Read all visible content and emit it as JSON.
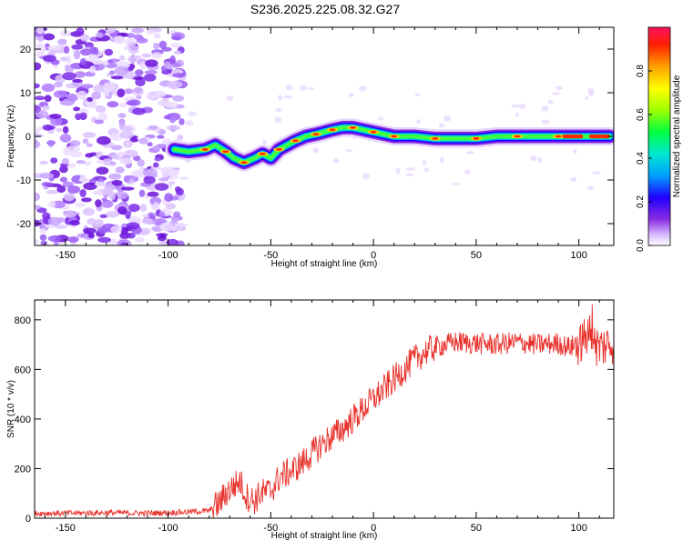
{
  "chart_data": [
    {
      "type": "heatmap",
      "title": "S236.2025.225.08.32.G27",
      "xlabel": "Height of straight line (km)",
      "ylabel": "Frequency (Hz)",
      "xlim": [
        -165,
        117
      ],
      "ylim": [
        -25,
        25
      ],
      "xticks": [
        -150,
        -100,
        -50,
        0,
        50,
        100
      ],
      "yticks": [
        -20,
        -10,
        0,
        10,
        20
      ],
      "colorbar": {
        "label": "Normalized spectral amplitude",
        "range": [
          0,
          1
        ],
        "ticks": [
          "0.0",
          "0.2",
          "0.4",
          "0.6",
          "0.8"
        ]
      },
      "ridge": {
        "x": [
          -97,
          -90,
          -82,
          -77,
          -72,
          -68,
          -63,
          -58,
          -54,
          -50,
          -46,
          -42,
          -38,
          -33,
          -28,
          -24,
          -20,
          -15,
          -10,
          -5,
          0,
          5,
          10,
          20,
          30,
          40,
          50,
          60,
          70,
          80,
          90,
          100,
          110,
          115
        ],
        "freq": [
          -3,
          -3.5,
          -3,
          -2,
          -3.5,
          -5,
          -6,
          -5,
          -4,
          -5,
          -3,
          -2,
          -1,
          0,
          0.5,
          1,
          1.5,
          2,
          2,
          1.5,
          1,
          0.5,
          0,
          0,
          -0.5,
          -0.5,
          -0.5,
          0,
          0,
          0,
          0,
          0,
          0,
          0
        ]
      }
    },
    {
      "type": "line",
      "title": "",
      "xlabel": "Height of straight line (km)",
      "ylabel": "SNR (10 * v/v)",
      "xlim": [
        -165,
        117
      ],
      "ylim": [
        0,
        880
      ],
      "xticks": [
        -150,
        -100,
        -50,
        0,
        50,
        100
      ],
      "yticks": [
        0,
        200,
        400,
        600,
        800
      ],
      "color": "#e8302a",
      "series": [
        {
          "name": "SNR",
          "x": [
            -165,
            -150,
            -130,
            -110,
            -90,
            -80,
            -75,
            -72,
            -68,
            -65,
            -62,
            -58,
            -55,
            -50,
            -47,
            -45,
            -40,
            -35,
            -30,
            -25,
            -20,
            -15,
            -10,
            -5,
            0,
            5,
            10,
            15,
            20,
            25,
            30,
            35,
            40,
            50,
            60,
            70,
            80,
            90,
            95,
            100,
            103,
            105,
            107,
            110,
            117
          ],
          "y": [
            20,
            20,
            22,
            20,
            25,
            30,
            60,
            100,
            130,
            150,
            90,
            70,
            100,
            110,
            150,
            170,
            190,
            220,
            260,
            300,
            330,
            360,
            400,
            440,
            480,
            520,
            560,
            600,
            640,
            670,
            690,
            700,
            710,
            705,
            700,
            710,
            700,
            705,
            690,
            700,
            720,
            750,
            700,
            690,
            710
          ]
        }
      ]
    }
  ]
}
